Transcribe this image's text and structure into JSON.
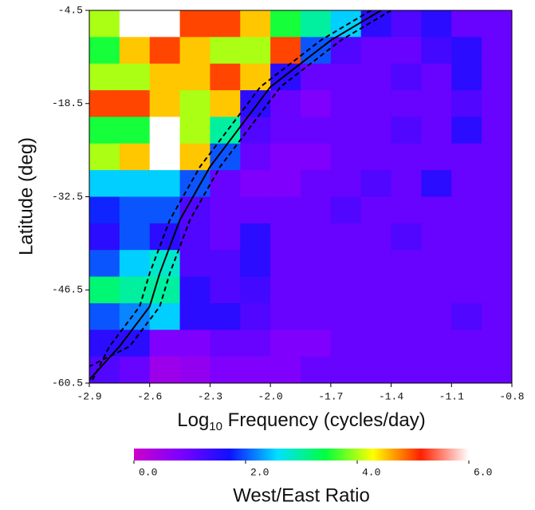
{
  "chart_data": {
    "type": "heatmap",
    "xlabel_parts": [
      "Log",
      "10",
      " Frequency (cycles/day)"
    ],
    "ylabel": "Latitude (deg)",
    "colorbar_label": "West/East Ratio",
    "xlim": [
      -2.9,
      -0.8
    ],
    "ylim": [
      -60.5,
      -4.5
    ],
    "xticks": [
      -2.9,
      -2.6,
      -2.3,
      {
        "value": -2.0,
        "label": "-2.0"
      },
      -1.7,
      -1.4,
      -1.1,
      -0.8
    ],
    "yticks": [
      -4.5,
      -18.5,
      -32.5,
      -46.5,
      -60.5
    ],
    "zlim": [
      0,
      6
    ],
    "colorbar_ticks": [
      {
        "value": 0,
        "label": "0.0"
      },
      {
        "value": 2,
        "label": "2.0"
      },
      {
        "value": 4,
        "label": "4.0"
      },
      {
        "value": 6,
        "label": "6.0"
      }
    ],
    "colormap": [
      "#cc00cc",
      "#7a00ff",
      "#1010ff",
      "#00e0ff",
      "#00ff40",
      "#ffff00",
      "#ff2000",
      "#ffffff"
    ],
    "x_edges": [
      -2.9,
      -2.75,
      -2.6,
      -2.45,
      -2.3,
      -2.15,
      -2.0,
      -1.85,
      -1.7,
      -1.55,
      -1.4,
      -1.25,
      -1.1,
      -0.95,
      -0.8
    ],
    "y_edges": [
      -4.5,
      -8.5,
      -12.5,
      -16.5,
      -20.5,
      -24.5,
      -28.5,
      -32.5,
      -36.5,
      -40.5,
      -44.5,
      -48.5,
      -52.5,
      -56.5,
      -60.5
    ],
    "z": [
      [
        4,
        6,
        6,
        5,
        5,
        4.5,
        3.5,
        3,
        2.5,
        1.5,
        1.2,
        1.5,
        1,
        1
      ],
      [
        3.5,
        4.5,
        5,
        4.5,
        4,
        4,
        5,
        2,
        1.2,
        1,
        1,
        1.3,
        1.5,
        1
      ],
      [
        4,
        4,
        4.5,
        4.5,
        5,
        4.5,
        1.5,
        1,
        1,
        1,
        1.2,
        1,
        1.5,
        1
      ],
      [
        5,
        5,
        4.5,
        4,
        4.5,
        1.5,
        1,
        0.8,
        1,
        1,
        1,
        1,
        1.2,
        1
      ],
      [
        3.5,
        3.5,
        6,
        4,
        3,
        1.2,
        1,
        1,
        1,
        1,
        1.2,
        1,
        1.5,
        1
      ],
      [
        4,
        4.5,
        6,
        4.5,
        2,
        1,
        0.8,
        0.8,
        1,
        1,
        1,
        1,
        1,
        1
      ],
      [
        2.5,
        2.5,
        2.5,
        2,
        1,
        0.8,
        0.8,
        1,
        1,
        1.2,
        1,
        1.5,
        1,
        1
      ],
      [
        1.8,
        2,
        2,
        1.2,
        1,
        1,
        1,
        1,
        1.2,
        1,
        1,
        1,
        1,
        1
      ],
      [
        1.5,
        2,
        1.5,
        1.2,
        1,
        1.5,
        1,
        1,
        1,
        1,
        1.2,
        1,
        1,
        1
      ],
      [
        2,
        2.5,
        2.8,
        1.2,
        1.2,
        1.5,
        1,
        1,
        1,
        1,
        1,
        1,
        1,
        1
      ],
      [
        3.2,
        3,
        3,
        1.5,
        1.2,
        1.3,
        1,
        1,
        1,
        1,
        1,
        1,
        1,
        1
      ],
      [
        2,
        2.2,
        2.5,
        1.5,
        1.5,
        1.2,
        1,
        1,
        1,
        1,
        1,
        1,
        1.2,
        1
      ],
      [
        1.5,
        1.5,
        0.8,
        0.8,
        1,
        1,
        0.8,
        0.8,
        1,
        1,
        1,
        1,
        1,
        1
      ],
      [
        1.2,
        1,
        0.5,
        0.6,
        0.8,
        0.8,
        0.8,
        1,
        1,
        1,
        1,
        1,
        1,
        1
      ]
    ],
    "lines": [
      {
        "dash": false,
        "color": "#000000",
        "x": [
          -1.45,
          -1.7,
          -2.0,
          -2.15,
          -2.3,
          -2.45,
          -2.55,
          -2.6,
          -2.75,
          -2.9
        ],
        "y": [
          -4.5,
          -9,
          -16,
          -22,
          -28,
          -36,
          -44,
          -49,
          -55,
          -60
        ]
      },
      {
        "dash": true,
        "color": "#000000",
        "x": [
          -1.4,
          -1.65,
          -1.95,
          -2.1,
          -2.25,
          -2.4,
          -2.5,
          -2.55,
          -2.7,
          -2.9
        ],
        "y": [
          -4.5,
          -9,
          -16,
          -22,
          -28,
          -36,
          -44,
          -49,
          -55,
          -58
        ]
      },
      {
        "dash": true,
        "color": "#000000",
        "x": [
          -1.5,
          -1.75,
          -2.05,
          -2.2,
          -2.35,
          -2.5,
          -2.6,
          -2.65,
          -2.8,
          -2.9
        ],
        "y": [
          -4.5,
          -9,
          -16,
          -22,
          -28,
          -36,
          -44,
          -49,
          -55,
          -61
        ]
      }
    ]
  }
}
